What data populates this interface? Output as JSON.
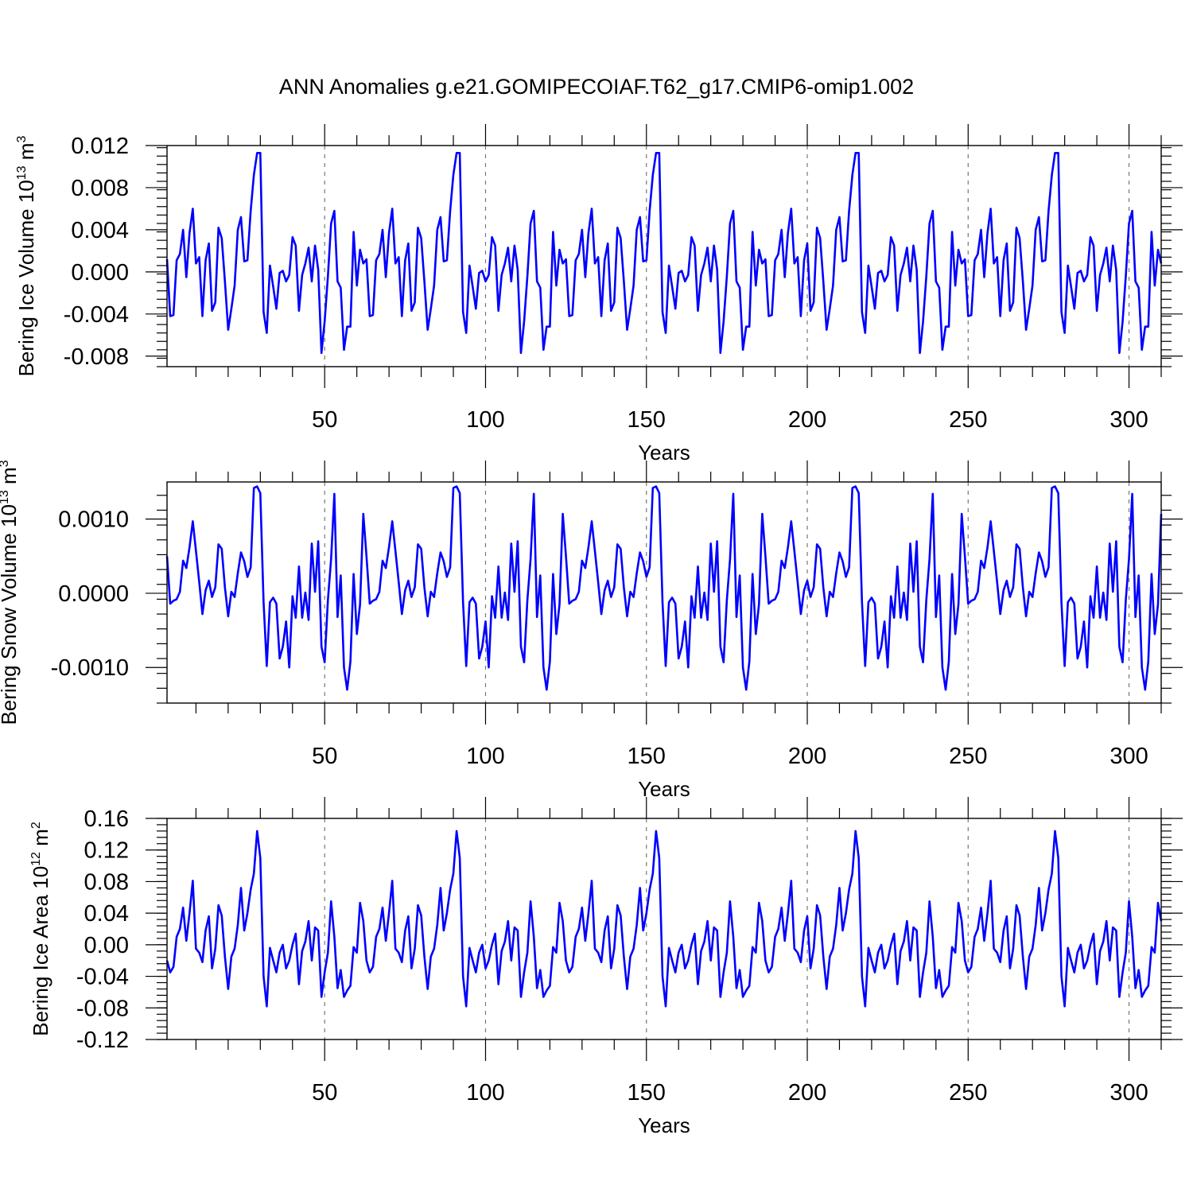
{
  "title": "ANN Anomalies g.e21.GOMIPECOIAF.T62_g17.CMIP6-omip1.002",
  "colors": {
    "series": "#0000ff",
    "grid": "#777777",
    "frame": "#000000"
  },
  "chart_data": [
    {
      "type": "line",
      "ylabel": "Bering Ice Volume 10",
      "ylabel_exp": "13",
      "ylabel_unit": " m",
      "ylabel_unit_exp": "3",
      "xlabel": "Years",
      "xlim": [
        1,
        310
      ],
      "ylim": [
        -0.009,
        0.012
      ],
      "yticks": [
        0.012,
        0.008,
        0.004,
        0.0,
        -0.004,
        -0.008
      ],
      "ytick_labels": [
        "0.012",
        "0.008",
        "0.004",
        "0.000",
        "-0.004",
        "-0.008"
      ],
      "xticks": [
        50,
        100,
        150,
        200,
        250,
        300
      ],
      "xtick_labels": [
        "50",
        "100",
        "150",
        "200",
        "250",
        "300"
      ],
      "grid_x": [
        50,
        100,
        150,
        200,
        250,
        300
      ],
      "period": 62,
      "cycle_values": [
        0.0012,
        -0.0042,
        -0.0041,
        0.0011,
        0.0017,
        0.004,
        -0.0005,
        0.0037,
        0.006,
        0.0008,
        0.0014,
        -0.0042,
        0.0011,
        0.0027,
        -0.0037,
        -0.0029,
        0.0042,
        0.0032,
        -0.0009,
        -0.0055,
        -0.0035,
        -0.0013,
        0.004,
        0.0052,
        0.001,
        0.0011,
        0.0058,
        0.0092,
        0.0113,
        0.0113,
        -0.0038,
        -0.0058,
        0.0006,
        -0.0014,
        -0.0035,
        -0.0001,
        0.0001,
        -0.0009,
        -0.0003,
        0.0033,
        0.0025,
        -0.0037,
        -0.0003,
        0.0008,
        0.0023,
        -0.0009,
        0.0025,
        0.0002,
        -0.0077,
        -0.0047,
        -0.0004,
        0.0046,
        0.0058,
        -0.0009,
        -0.0015,
        -0.0074,
        -0.0052,
        -0.0052,
        0.0038,
        -0.0013,
        0.0021,
        0.0008
      ]
    },
    {
      "type": "line",
      "ylabel": "Bering Snow Volume 10",
      "ylabel_exp": "13",
      "ylabel_unit": " m",
      "ylabel_unit_exp": "3",
      "xlabel": "Years",
      "xlim": [
        1,
        310
      ],
      "ylim": [
        -0.00148,
        0.0015
      ],
      "yticks": [
        0.001,
        0.0,
        -0.001
      ],
      "ytick_labels": [
        "0.0010",
        "0.0000",
        "-0.0010"
      ],
      "xticks": [
        50,
        100,
        150,
        200,
        250,
        300
      ],
      "xtick_labels": [
        "50",
        "100",
        "150",
        "200",
        "250",
        "300"
      ],
      "grid_x": [
        50,
        100,
        150,
        200,
        250,
        300
      ],
      "period": 62,
      "cycle_values": [
        0.0005,
        -0.00014,
        -0.0001,
        -8e-05,
        2e-05,
        0.00044,
        0.00034,
        0.00062,
        0.00097,
        0.00057,
        0.00015,
        -0.00028,
        4e-05,
        0.00017,
        -5e-05,
        8e-05,
        0.00066,
        0.0006,
        8e-05,
        -0.00031,
        2e-05,
        -5e-05,
        0.00027,
        0.00055,
        0.00043,
        0.00022,
        0.00035,
        0.00142,
        0.00144,
        0.00135,
        -0.00012,
        -0.00098,
        -0.00012,
        -6e-05,
        -0.00014,
        -0.00088,
        -0.00072,
        -0.00038,
        -0.001,
        -4e-05,
        -0.00033,
        0.00036,
        -0.00033,
        1e-05,
        -0.00036,
        0.00067,
        2e-05,
        0.0007,
        -0.00072,
        -0.00093,
        -9e-05,
        0.00046,
        0.00134,
        -0.00032,
        0.00024,
        -0.001,
        -0.0013,
        -0.00092,
        0.00026,
        -0.00055,
        -0.00015,
        0.00107
      ]
    },
    {
      "type": "line",
      "ylabel": "Bering Ice Area 10",
      "ylabel_exp": "12",
      "ylabel_unit": " m",
      "ylabel_unit_exp": "2",
      "xlabel": "Years",
      "xlim": [
        1,
        310
      ],
      "ylim": [
        -0.12,
        0.16
      ],
      "yticks": [
        0.16,
        0.12,
        0.08,
        0.04,
        0.0,
        -0.04,
        -0.08,
        -0.12
      ],
      "ytick_labels": [
        "0.16",
        "0.12",
        "0.08",
        "0.04",
        "0.00",
        "-0.04",
        "-0.08",
        "-0.12"
      ],
      "xticks": [
        50,
        100,
        150,
        200,
        250,
        300
      ],
      "xtick_labels": [
        "50",
        "100",
        "150",
        "200",
        "250",
        "300"
      ],
      "grid_x": [
        50,
        100,
        150,
        200,
        250,
        300
      ],
      "period": 62,
      "cycle_values": [
        -0.02,
        -0.035,
        -0.028,
        0.01,
        0.02,
        0.047,
        0.005,
        0.04,
        0.081,
        -0.005,
        -0.01,
        -0.022,
        0.018,
        0.036,
        -0.03,
        -0.005,
        0.05,
        0.037,
        -0.015,
        -0.056,
        -0.015,
        -0.005,
        0.025,
        0.072,
        0.018,
        0.04,
        0.07,
        0.09,
        0.144,
        0.11,
        -0.04,
        -0.078,
        -0.004,
        -0.02,
        -0.035,
        -0.01,
        0.0,
        -0.03,
        -0.02,
        0.0,
        0.014,
        -0.05,
        -0.008,
        0.004,
        0.03,
        -0.02,
        0.022,
        0.018,
        -0.066,
        -0.035,
        -0.01,
        0.055,
        0.01,
        -0.055,
        -0.032,
        -0.066,
        -0.058,
        -0.052,
        -0.003,
        -0.01,
        0.053,
        0.03
      ]
    }
  ]
}
